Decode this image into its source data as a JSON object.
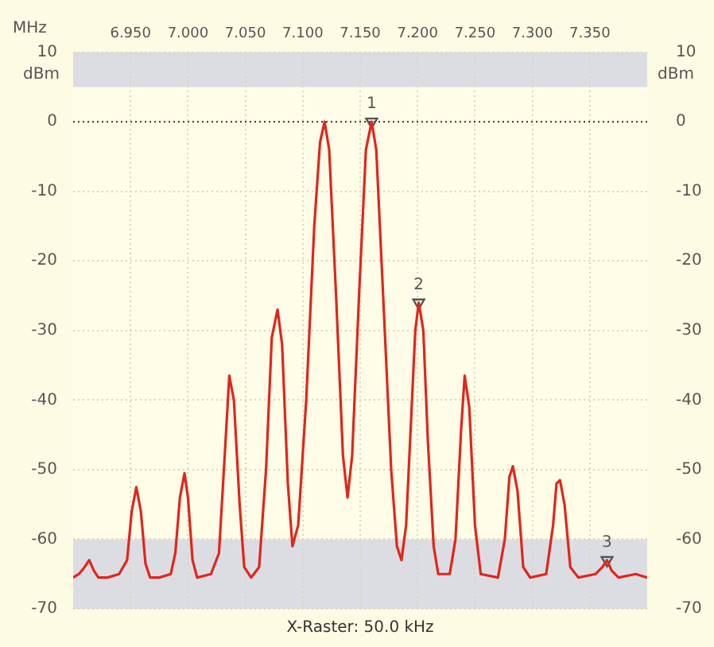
{
  "chart_data": {
    "type": "line",
    "xlabel": "MHz",
    "ylabel": "dBm",
    "y2label": "dBm",
    "xlim": [
      6.9,
      7.4
    ],
    "xticks": [
      {
        "value": 6.95,
        "label": "6.950"
      },
      {
        "value": 7.0,
        "label": "7.000"
      },
      {
        "value": 7.05,
        "label": "7.050"
      },
      {
        "value": 7.1,
        "label": "7.100"
      },
      {
        "value": 7.15,
        "label": "7.150"
      },
      {
        "value": 7.2,
        "label": "7.200"
      },
      {
        "value": 7.25,
        "label": "7.250"
      },
      {
        "value": 7.3,
        "label": "7.300"
      },
      {
        "value": 7.35,
        "label": "7.350"
      }
    ],
    "ylim": [
      -70,
      10
    ],
    "yticks": [
      -70,
      -60,
      -50,
      -40,
      -30,
      -20,
      -10,
      0,
      10
    ],
    "y2lim": [
      -70,
      10
    ],
    "y2ticks": [
      -70,
      -60,
      -50,
      -40,
      -30,
      -20,
      -10,
      0,
      10
    ],
    "grid": true,
    "legend": false,
    "marker": "none",
    "line_style": "solid",
    "series": [
      {
        "color": "#e0261c",
        "x": [
          6.9,
          6.905,
          6.91,
          6.914,
          6.918,
          6.922,
          6.93,
          6.94,
          6.947,
          6.951,
          6.955,
          6.959,
          6.963,
          6.967,
          6.975,
          6.985,
          6.989,
          6.993,
          6.997,
          7.0,
          7.004,
          7.008,
          7.02,
          7.027,
          7.032,
          7.036,
          7.04,
          7.045,
          7.049,
          7.055,
          7.062,
          7.068,
          7.073,
          7.078,
          7.082,
          7.087,
          7.091,
          7.096,
          7.103,
          7.11,
          7.115,
          7.119,
          7.123,
          7.129,
          7.135,
          7.139,
          7.143,
          7.149,
          7.155,
          7.16,
          7.164,
          7.17,
          7.177,
          7.182,
          7.186,
          7.19,
          7.194,
          7.198,
          7.201,
          7.205,
          7.209,
          7.214,
          7.218,
          7.228,
          7.233,
          7.238,
          7.241,
          7.245,
          7.25,
          7.255,
          7.27,
          7.276,
          7.28,
          7.283,
          7.287,
          7.292,
          7.298,
          7.312,
          7.318,
          7.321,
          7.324,
          7.328,
          7.333,
          7.34,
          7.355,
          7.361,
          7.365,
          7.369,
          7.375,
          7.39,
          7.4
        ],
        "values": [
          -65.5,
          -65,
          -64,
          -63,
          -64.5,
          -65.5,
          -65.5,
          -65,
          -63,
          -56,
          -52.5,
          -56,
          -63.5,
          -65.5,
          -65.5,
          -65,
          -62,
          -54,
          -50.5,
          -54,
          -63,
          -65.5,
          -65,
          -62,
          -48,
          -36.5,
          -40,
          -55,
          -64,
          -65.5,
          -64,
          -50,
          -31,
          -27,
          -32,
          -52,
          -61,
          -58,
          -40,
          -15,
          -3,
          0,
          -4,
          -25,
          -48,
          -54,
          -48,
          -25,
          -4,
          0,
          -4,
          -25,
          -50,
          -61,
          -63,
          -58,
          -44,
          -30,
          -26,
          -30,
          -46,
          -61,
          -65,
          -65,
          -60,
          -44,
          -36.5,
          -41,
          -58,
          -65,
          -65.5,
          -60,
          -51,
          -49.5,
          -53,
          -64,
          -65.5,
          -65,
          -58,
          -52,
          -51.5,
          -55,
          -64,
          -65.5,
          -65,
          -64,
          -63,
          -64.5,
          -65.5,
          -65,
          -65.5
        ]
      },
      {
        "type": "scatter",
        "marker": "triangle",
        "color": "#555555",
        "x": [
          7.16,
          7.201,
          7.365
        ],
        "values": [
          0,
          -26,
          -63
        ]
      }
    ],
    "ref_lines": [
      {
        "axis": "y",
        "value": 0,
        "color": "#333333",
        "line_style": "dotted"
      }
    ],
    "bands": [
      {
        "axis": "y",
        "from": 5,
        "to": 10,
        "color": "#dcdde2"
      },
      {
        "axis": "y",
        "from": -70,
        "to": -60,
        "color": "#dcdde2"
      }
    ],
    "annotations": [
      {
        "text": "1",
        "x": 7.16,
        "y": 0
      },
      {
        "text": "2",
        "x": 7.201,
        "y": -26
      },
      {
        "text": "3",
        "x": 7.365,
        "y": -63
      },
      "X-Raster: 50.0 kHz"
    ]
  }
}
